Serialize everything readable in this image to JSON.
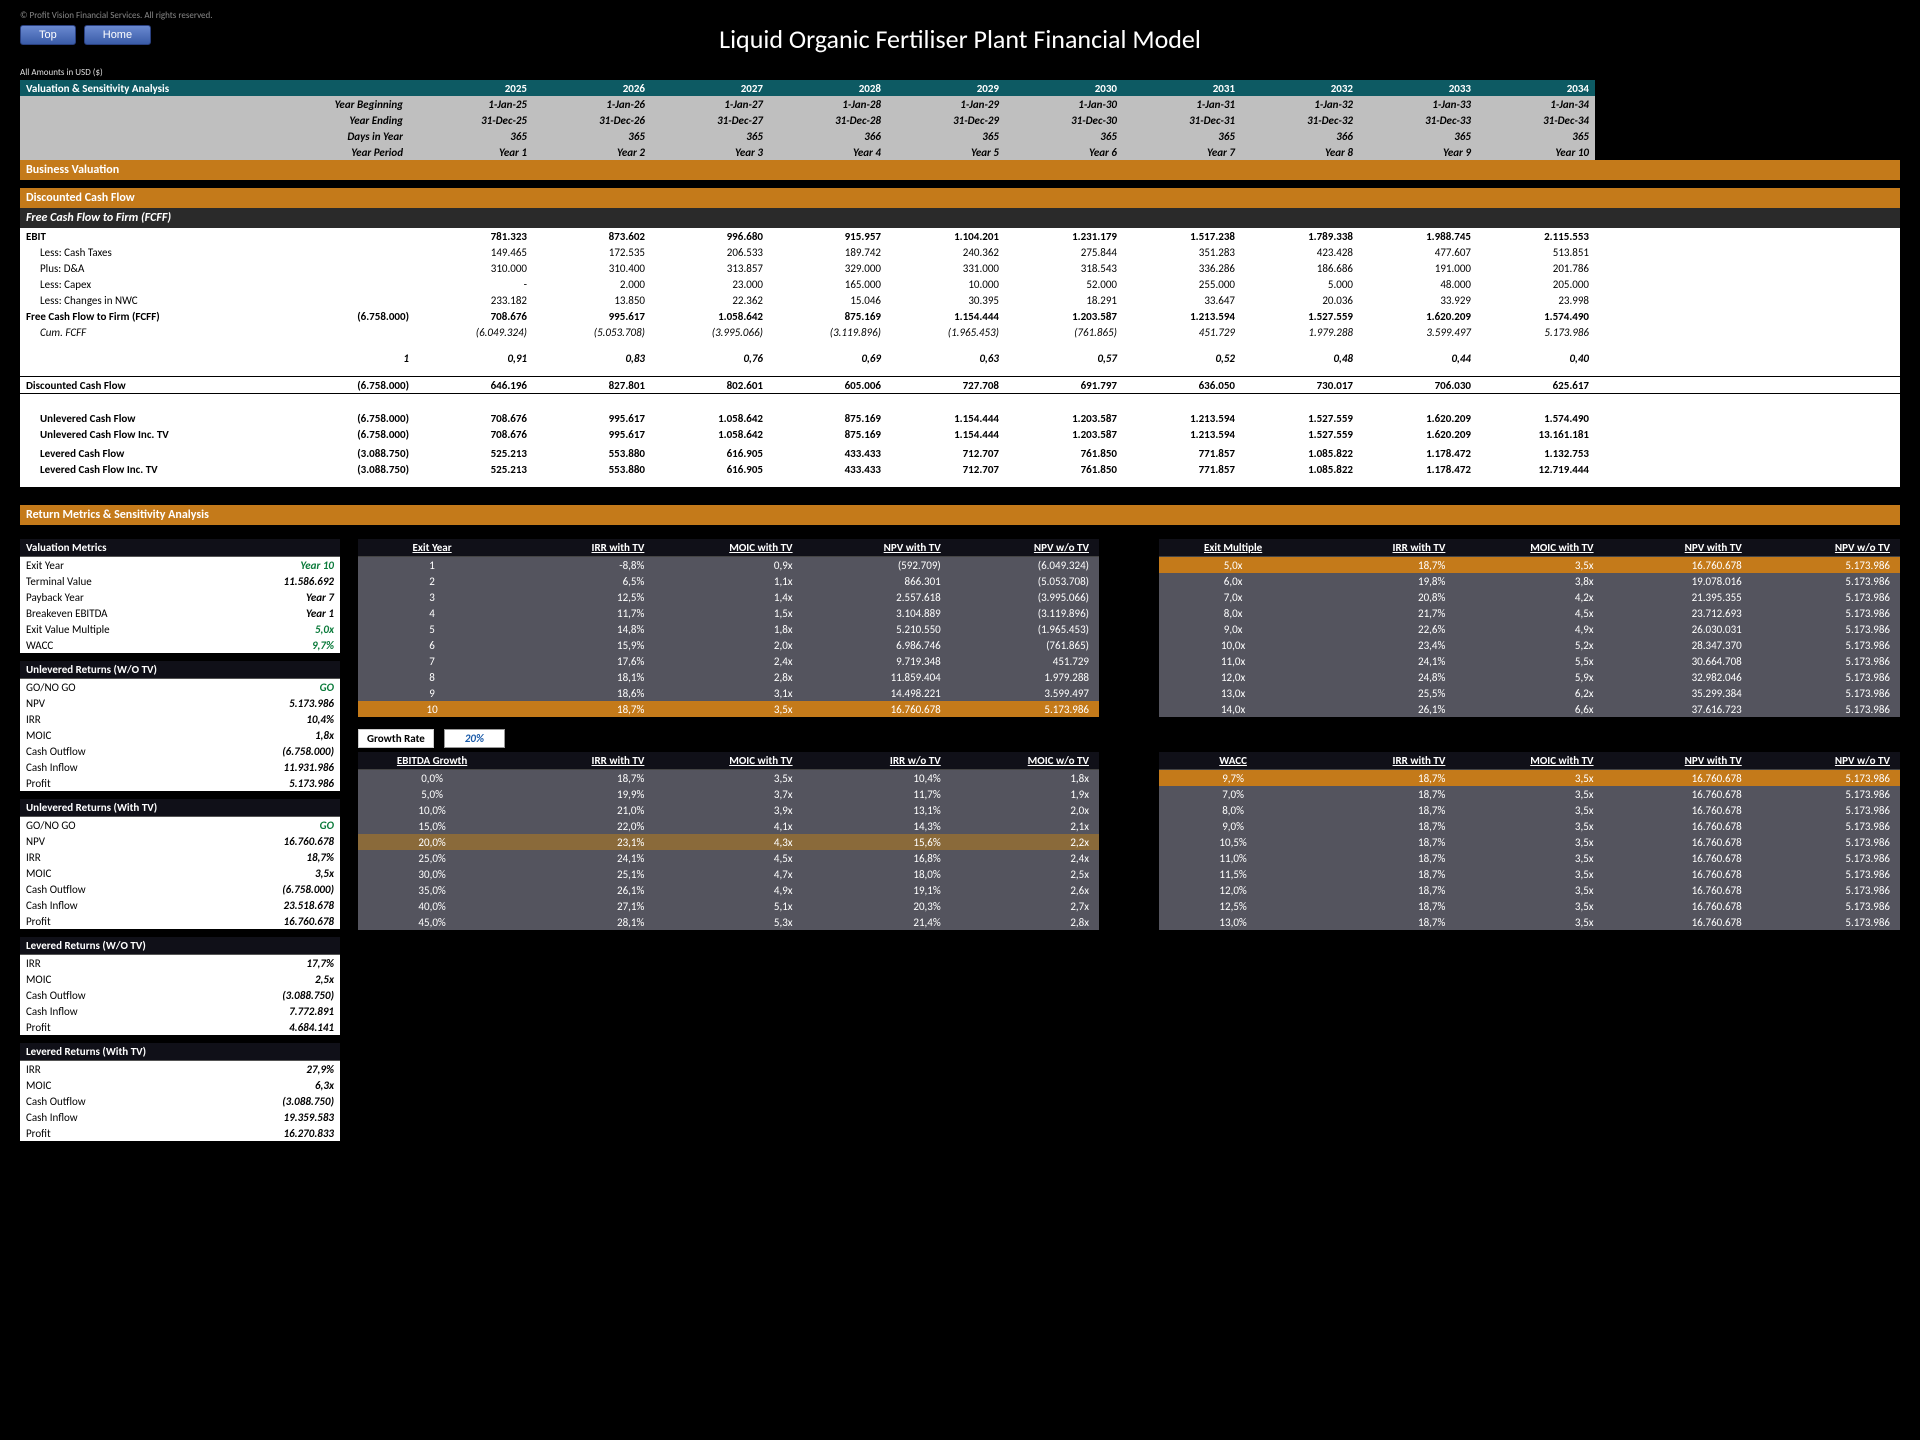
{
  "copyright": "© Profit Vision Financial Services. All rights reserved.",
  "buttons": {
    "top": "Top",
    "home": "Home"
  },
  "title": "Liquid Organic Fertiliser Plant Financial Model",
  "amounts_note": "All Amounts in  USD ($)",
  "section_headers": {
    "valuation_sensitivity": "Valuation & Sensitivity Analysis",
    "business_valuation": "Business Valuation",
    "dcf": "Discounted Cash Flow",
    "fcff": "Free Cash Flow to Firm (FCFF)",
    "return_metrics": "Return Metrics & Sensitivity Analysis",
    "val_metrics": "Valuation Metrics",
    "unlev_wo": "Unlevered Returns (W/O TV)",
    "unlev_with": "Unlevered Returns (With TV)",
    "lev_wo": "Levered Returns (W/O TV)",
    "lev_with": "Levered Returns (With TV)"
  },
  "year_header": {
    "labels": [
      "Year Beginning",
      "Year Ending",
      "Days in Year",
      "Year Period"
    ],
    "rows": [
      [
        "1-Jan-25",
        "1-Jan-26",
        "1-Jan-27",
        "1-Jan-28",
        "1-Jan-29",
        "1-Jan-30",
        "1-Jan-31",
        "1-Jan-32",
        "1-Jan-33",
        "1-Jan-34"
      ],
      [
        "31-Dec-25",
        "31-Dec-26",
        "31-Dec-27",
        "31-Dec-28",
        "31-Dec-29",
        "31-Dec-30",
        "31-Dec-31",
        "31-Dec-32",
        "31-Dec-33",
        "31-Dec-34"
      ],
      [
        "365",
        "365",
        "365",
        "366",
        "365",
        "365",
        "365",
        "366",
        "365",
        "365"
      ],
      [
        "Year 1",
        "Year 2",
        "Year 3",
        "Year 4",
        "Year 5",
        "Year 6",
        "Year 7",
        "Year 8",
        "Year 9",
        "Year 10"
      ]
    ],
    "years": [
      "2025",
      "2026",
      "2027",
      "2028",
      "2029",
      "2030",
      "2031",
      "2032",
      "2033",
      "2034"
    ]
  },
  "dcf_rows": [
    {
      "label": "EBIT",
      "bold": true,
      "col0": "",
      "vals": [
        "781.323",
        "873.602",
        "996.680",
        "915.957",
        "1.104.201",
        "1.231.179",
        "1.517.238",
        "1.789.338",
        "1.988.745",
        "2.115.553"
      ]
    },
    {
      "label": "Less: Cash Taxes",
      "indent": true,
      "col0": "",
      "vals": [
        "149.465",
        "172.535",
        "206.533",
        "189.742",
        "240.362",
        "275.844",
        "351.283",
        "423.428",
        "477.607",
        "513.851"
      ]
    },
    {
      "label": "Plus: D&A",
      "indent": true,
      "col0": "",
      "vals": [
        "310.000",
        "310.400",
        "313.857",
        "329.000",
        "331.000",
        "318.543",
        "336.286",
        "186.686",
        "191.000",
        "201.786"
      ]
    },
    {
      "label": "Less: Capex",
      "indent": true,
      "col0": "",
      "vals": [
        "-",
        "2.000",
        "23.000",
        "165.000",
        "10.000",
        "52.000",
        "255.000",
        "5.000",
        "48.000",
        "205.000"
      ]
    },
    {
      "label": "Less: Changes in NWC",
      "indent": true,
      "col0": "",
      "vals": [
        "233.182",
        "13.850",
        "22.362",
        "15.046",
        "30.395",
        "18.291",
        "33.647",
        "20.036",
        "33.929",
        "23.998"
      ]
    },
    {
      "label": "Free Cash Flow to Firm (FCFF)",
      "bold": true,
      "col0": "(6.758.000)",
      "vals": [
        "708.676",
        "995.617",
        "1.058.642",
        "875.169",
        "1.154.444",
        "1.203.587",
        "1.213.594",
        "1.527.559",
        "1.620.209",
        "1.574.490"
      ]
    },
    {
      "label": "Cum. FCFF",
      "italic": true,
      "indent": true,
      "col0": "",
      "vals": [
        "(6.049.324)",
        "(5.053.708)",
        "(3.995.066)",
        "(3.119.896)",
        "(1.965.453)",
        "(761.865)",
        "451.729",
        "1.979.288",
        "3.599.497",
        "5.173.986"
      ]
    }
  ],
  "discount_factor": {
    "label": "1",
    "vals": [
      "0,91",
      "0,83",
      "0,76",
      "0,69",
      "0,63",
      "0,57",
      "0,52",
      "0,48",
      "0,44",
      "0,40"
    ]
  },
  "dcf_row": {
    "label": "Discounted Cash Flow",
    "col0": "(6.758.000)",
    "vals": [
      "646.196",
      "827.801",
      "802.601",
      "605.006",
      "727.708",
      "691.797",
      "636.050",
      "730.017",
      "706.030",
      "625.617"
    ]
  },
  "cf_rows": [
    {
      "label": "Unlevered Cash Flow",
      "col0": "(6.758.000)",
      "vals": [
        "708.676",
        "995.617",
        "1.058.642",
        "875.169",
        "1.154.444",
        "1.203.587",
        "1.213.594",
        "1.527.559",
        "1.620.209",
        "1.574.490"
      ]
    },
    {
      "label": "Unlevered Cash Flow Inc. TV",
      "col0": "(6.758.000)",
      "vals": [
        "708.676",
        "995.617",
        "1.058.642",
        "875.169",
        "1.154.444",
        "1.203.587",
        "1.213.594",
        "1.527.559",
        "1.620.209",
        "13.161.181"
      ]
    },
    {
      "label": "",
      "col0": "",
      "vals": [
        "",
        "",
        "",
        "",
        "",
        "",
        "",
        "",
        "",
        ""
      ]
    },
    {
      "label": "Levered Cash Flow",
      "col0": "(3.088.750)",
      "vals": [
        "525.213",
        "553.880",
        "616.905",
        "433.433",
        "712.707",
        "761.850",
        "771.857",
        "1.085.822",
        "1.178.472",
        "1.132.753"
      ]
    },
    {
      "label": "Levered Cash Flow Inc. TV",
      "col0": "(3.088.750)",
      "vals": [
        "525.213",
        "553.880",
        "616.905",
        "433.433",
        "712.707",
        "761.850",
        "771.857",
        "1.085.822",
        "1.178.472",
        "12.719.444"
      ]
    }
  ],
  "val_metrics": [
    {
      "l": "Exit Year",
      "v": "Year 10",
      "green": true
    },
    {
      "l": "Terminal Value",
      "v": "11.586.692"
    },
    {
      "l": "Payback Year",
      "v": "Year 7"
    },
    {
      "l": "Breakeven EBITDA",
      "v": "Year 1"
    },
    {
      "l": "Exit Value Multiple",
      "v": "5,0x",
      "green": true
    },
    {
      "l": "WACC",
      "v": "9,7%",
      "green": true
    }
  ],
  "unlev_wo": [
    {
      "l": "GO/NO GO",
      "v": "GO",
      "green": true
    },
    {
      "l": "NPV",
      "v": "5.173.986"
    },
    {
      "l": "IRR",
      "v": "10,4%"
    },
    {
      "l": "MOIC",
      "v": "1,8x"
    },
    {
      "l": "Cash Outflow",
      "v": "(6.758.000)"
    },
    {
      "l": "Cash Inflow",
      "v": "11.931.986"
    },
    {
      "l": "Profit",
      "v": "5.173.986"
    }
  ],
  "unlev_with": [
    {
      "l": "GO/NO GO",
      "v": "GO",
      "green": true
    },
    {
      "l": "NPV",
      "v": "16.760.678"
    },
    {
      "l": "IRR",
      "v": "18,7%"
    },
    {
      "l": "MOIC",
      "v": "3,5x"
    },
    {
      "l": "Cash Outflow",
      "v": "(6.758.000)"
    },
    {
      "l": "Cash Inflow",
      "v": "23.518.678"
    },
    {
      "l": "Profit",
      "v": "16.760.678"
    }
  ],
  "lev_wo": [
    {
      "l": "IRR",
      "v": "17,7%"
    },
    {
      "l": "MOIC",
      "v": "2,5x"
    },
    {
      "l": "Cash Outflow",
      "v": "(3.088.750)"
    },
    {
      "l": "Cash Inflow",
      "v": "7.772.891"
    },
    {
      "l": "Profit",
      "v": "4.684.141"
    }
  ],
  "lev_with": [
    {
      "l": "IRR",
      "v": "27,9%"
    },
    {
      "l": "MOIC",
      "v": "6,3x"
    },
    {
      "l": "Cash Outflow",
      "v": "(3.088.750)"
    },
    {
      "l": "Cash Inflow",
      "v": "19.359.583"
    },
    {
      "l": "Profit",
      "v": "16.270.833"
    }
  ],
  "exit_year_sens": {
    "headers": [
      "Exit Year",
      "IRR with TV",
      "MOIC with TV",
      "NPV with TV",
      "NPV w/o TV"
    ],
    "rows": [
      [
        "1",
        "-8,8%",
        "0,9x",
        "(592.709)",
        "(6.049.324)"
      ],
      [
        "2",
        "6,5%",
        "1,1x",
        "866.301",
        "(5.053.708)"
      ],
      [
        "3",
        "12,5%",
        "1,4x",
        "2.557.618",
        "(3.995.066)"
      ],
      [
        "4",
        "11,7%",
        "1,5x",
        "3.104.889",
        "(3.119.896)"
      ],
      [
        "5",
        "14,8%",
        "1,8x",
        "5.210.550",
        "(1.965.453)"
      ],
      [
        "6",
        "15,9%",
        "2,0x",
        "6.986.746",
        "(761.865)"
      ],
      [
        "7",
        "17,6%",
        "2,4x",
        "9.719.348",
        "451.729"
      ],
      [
        "8",
        "18,1%",
        "2,8x",
        "11.859.404",
        "1.979.288"
      ],
      [
        "9",
        "18,6%",
        "3,1x",
        "14.498.221",
        "3.599.497"
      ],
      [
        "10",
        "18,7%",
        "3,5x",
        "16.760.678",
        "5.173.986"
      ]
    ],
    "hl_row": 9
  },
  "exit_mult_sens": {
    "headers": [
      "Exit Multiple",
      "IRR with TV",
      "MOIC with TV",
      "NPV with TV",
      "NPV w/o TV"
    ],
    "rows": [
      [
        "5,0x",
        "18,7%",
        "3,5x",
        "16.760.678",
        "5.173.986"
      ],
      [
        "6,0x",
        "19,8%",
        "3,8x",
        "19.078.016",
        "5.173.986"
      ],
      [
        "7,0x",
        "20,8%",
        "4,2x",
        "21.395.355",
        "5.173.986"
      ],
      [
        "8,0x",
        "21,7%",
        "4,5x",
        "23.712.693",
        "5.173.986"
      ],
      [
        "9,0x",
        "22,6%",
        "4,9x",
        "26.030.031",
        "5.173.986"
      ],
      [
        "10,0x",
        "23,4%",
        "5,2x",
        "28.347.370",
        "5.173.986"
      ],
      [
        "11,0x",
        "24,1%",
        "5,5x",
        "30.664.708",
        "5.173.986"
      ],
      [
        "12,0x",
        "24,8%",
        "5,9x",
        "32.982.046",
        "5.173.986"
      ],
      [
        "13,0x",
        "25,5%",
        "6,2x",
        "35.299.384",
        "5.173.986"
      ],
      [
        "14,0x",
        "26,1%",
        "6,6x",
        "37.616.723",
        "5.173.986"
      ]
    ],
    "hl_row": 0
  },
  "growth_rate": {
    "label": "Growth Rate",
    "value": "20%"
  },
  "ebitda_sens": {
    "headers": [
      "EBITDA Growth",
      "IRR with TV",
      "MOIC with TV",
      "IRR w/o TV",
      "MOIC w/o TV"
    ],
    "rows": [
      [
        "0,0%",
        "18,7%",
        "3,5x",
        "10,4%",
        "1,8x"
      ],
      [
        "5,0%",
        "19,9%",
        "3,7x",
        "11,7%",
        "1,9x"
      ],
      [
        "10,0%",
        "21,0%",
        "3,9x",
        "13,1%",
        "2,0x"
      ],
      [
        "15,0%",
        "22,0%",
        "4,1x",
        "14,3%",
        "2,1x"
      ],
      [
        "20,0%",
        "23,1%",
        "4,3x",
        "15,6%",
        "2,2x"
      ],
      [
        "25,0%",
        "24,1%",
        "4,5x",
        "16,8%",
        "2,4x"
      ],
      [
        "30,0%",
        "25,1%",
        "4,7x",
        "18,0%",
        "2,5x"
      ],
      [
        "35,0%",
        "26,1%",
        "4,9x",
        "19,1%",
        "2,6x"
      ],
      [
        "40,0%",
        "27,1%",
        "5,1x",
        "20,3%",
        "2,7x"
      ],
      [
        "45,0%",
        "28,1%",
        "5,3x",
        "21,4%",
        "2,8x"
      ]
    ],
    "hl_row": 4
  },
  "wacc_sens": {
    "headers": [
      "WACC",
      "IRR with TV",
      "MOIC with TV",
      "NPV with TV",
      "NPV w/o TV"
    ],
    "rows": [
      [
        "9,7%",
        "18,7%",
        "3,5x",
        "16.760.678",
        "5.173.986"
      ],
      [
        "7,0%",
        "18,7%",
        "3,5x",
        "16.760.678",
        "5.173.986"
      ],
      [
        "8,0%",
        "18,7%",
        "3,5x",
        "16.760.678",
        "5.173.986"
      ],
      [
        "9,0%",
        "18,7%",
        "3,5x",
        "16.760.678",
        "5.173.986"
      ],
      [
        "10,5%",
        "18,7%",
        "3,5x",
        "16.760.678",
        "5.173.986"
      ],
      [
        "11,0%",
        "18,7%",
        "3,5x",
        "16.760.678",
        "5.173.986"
      ],
      [
        "11,5%",
        "18,7%",
        "3,5x",
        "16.760.678",
        "5.173.986"
      ],
      [
        "12,0%",
        "18,7%",
        "3,5x",
        "16.760.678",
        "5.173.986"
      ],
      [
        "12,5%",
        "18,7%",
        "3,5x",
        "16.760.678",
        "5.173.986"
      ],
      [
        "13,0%",
        "18,7%",
        "3,5x",
        "16.760.678",
        "5.173.986"
      ]
    ],
    "hl_row": 0
  },
  "style": {
    "colors": {
      "page_bg": "#000000",
      "teal": "#0d5a63",
      "orange": "#c47a1a",
      "dark_bar": "#2a2a2a",
      "grey_hdr": "#bfbfbf",
      "sens_cell": "#54545e",
      "sens_hdr": "#101018",
      "green": "#0a7a3a",
      "btn_grad_top": "#6a89d0",
      "btn_grad_bot": "#3a5ca8"
    },
    "fonts": {
      "body_pt": 10,
      "title_pt": 26
    }
  }
}
